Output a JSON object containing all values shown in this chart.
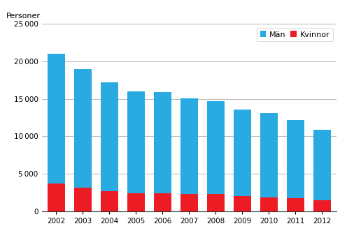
{
  "years": [
    2002,
    2003,
    2004,
    2005,
    2006,
    2007,
    2008,
    2009,
    2010,
    2011,
    2012
  ],
  "man_values": [
    17300,
    15900,
    14500,
    13600,
    13500,
    12800,
    12400,
    11600,
    11300,
    10500,
    9400
  ],
  "kvinnor_values": [
    3700,
    3100,
    2700,
    2400,
    2400,
    2300,
    2300,
    2000,
    1800,
    1700,
    1500
  ],
  "man_color": "#29ABE2",
  "kvinnor_color": "#ED1C24",
  "ylabel": "Personer",
  "ylim": [
    0,
    25000
  ],
  "yticks": [
    0,
    5000,
    10000,
    15000,
    20000,
    25000
  ],
  "legend_labels": [
    "Män",
    "Kvinnor"
  ],
  "background_color": "#ffffff",
  "grid_color": "#999999"
}
